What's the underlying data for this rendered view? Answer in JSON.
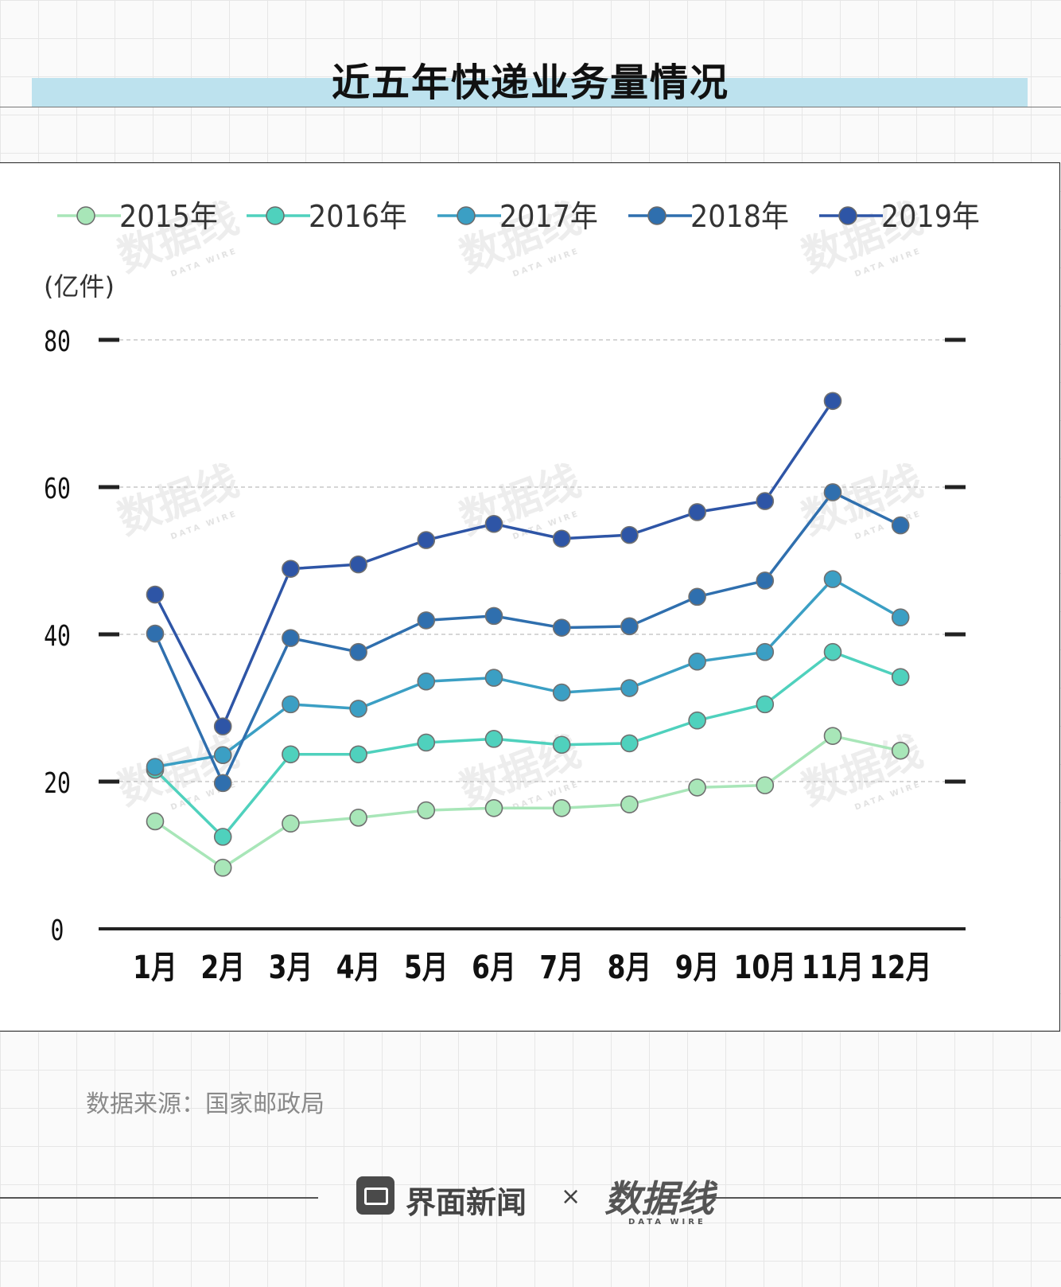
{
  "title": "近五年快递业务量情况",
  "source": "数据来源：国家邮政局",
  "footer": {
    "brand": "界面新闻",
    "separator": "×",
    "partner": "数据线",
    "partner_sub": "DATA WIRE"
  },
  "watermark": {
    "text": "数据线",
    "sub": "DATA WIRE"
  },
  "chart_data": {
    "type": "line",
    "title": "近五年快递业务量情况",
    "ylabel": "(亿件)",
    "xlabel": "",
    "categories": [
      "1月",
      "2月",
      "3月",
      "4月",
      "5月",
      "6月",
      "7月",
      "8月",
      "9月",
      "10月",
      "11月",
      "12月"
    ],
    "ylim": [
      0,
      80
    ],
    "yticks": [
      0,
      20,
      40,
      60,
      80
    ],
    "grid": true,
    "legend": "top",
    "series": [
      {
        "name": "2015年",
        "color": "#a8e6b8",
        "values": [
          14.6,
          8.3,
          14.3,
          15.1,
          16.1,
          16.4,
          16.4,
          16.9,
          19.2,
          19.5,
          26.2,
          24.2
        ]
      },
      {
        "name": "2016年",
        "color": "#4fd1bd",
        "values": [
          21.6,
          12.5,
          23.7,
          23.7,
          25.3,
          25.8,
          25.0,
          25.2,
          28.3,
          30.5,
          37.6,
          34.2
        ]
      },
      {
        "name": "2017年",
        "color": "#3b9fc4",
        "values": [
          22.0,
          23.6,
          30.5,
          29.9,
          33.6,
          34.1,
          32.1,
          32.7,
          36.3,
          37.6,
          47.5,
          42.3
        ]
      },
      {
        "name": "2018年",
        "color": "#2f6fae",
        "values": [
          40.1,
          19.8,
          39.5,
          37.6,
          41.9,
          42.5,
          40.9,
          41.1,
          45.1,
          47.3,
          59.3,
          54.8
        ]
      },
      {
        "name": "2019年",
        "color": "#2e55a6",
        "values": [
          45.4,
          27.5,
          48.9,
          49.5,
          52.8,
          55.0,
          53.0,
          53.5,
          56.6,
          58.1,
          71.7,
          null
        ]
      }
    ]
  }
}
